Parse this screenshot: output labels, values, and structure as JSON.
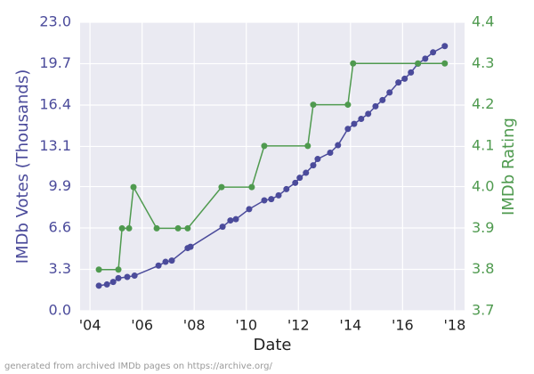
{
  "chart_data": {
    "type": "line",
    "xlabel": "Date",
    "ylabel": "IMDb Votes (Thousands)",
    "y2label": "IMDb Rating",
    "footnote": "generated from archived IMDb pages on https://archive.org/",
    "xlim": [
      2003.62,
      2018.38
    ],
    "xticks": [
      {
        "value": 2004,
        "label": "'04"
      },
      {
        "value": 2006,
        "label": "'06"
      },
      {
        "value": 2008,
        "label": "'08"
      },
      {
        "value": 2010,
        "label": "'10"
      },
      {
        "value": 2012,
        "label": "'12"
      },
      {
        "value": 2014,
        "label": "'14"
      },
      {
        "value": 2016,
        "label": "'16"
      },
      {
        "value": 2018,
        "label": "'18"
      }
    ],
    "ylim": [
      0,
      23
    ],
    "yticks": [
      {
        "value": 0,
        "label": "0.0"
      },
      3.3,
      6.6,
      9.9,
      13.1,
      16.4,
      19.7,
      {
        "value": 23,
        "label": "23.0"
      }
    ],
    "y2lim": [
      3.7,
      4.4
    ],
    "y2ticks": [
      3.7,
      3.8,
      3.9,
      {
        "value": 4,
        "label": "4.0"
      },
      4.1,
      4.2,
      4.3,
      4.4
    ],
    "grid": true,
    "series": [
      {
        "name": "IMDb Votes (Thousands)",
        "color": "#4b4b9b",
        "axis": "y",
        "x": [
          2004.34,
          2004.65,
          2004.89,
          2005.09,
          2005.43,
          2005.71,
          2006.63,
          2006.9,
          2007.14,
          2007.75,
          2007.86,
          2009.09,
          2009.39,
          2009.6,
          2010.11,
          2010.69,
          2010.96,
          2011.24,
          2011.54,
          2011.88,
          2012.05,
          2012.29,
          2012.57,
          2012.74,
          2013.22,
          2013.52,
          2013.9,
          2014.14,
          2014.41,
          2014.68,
          2014.96,
          2015.23,
          2015.5,
          2015.84,
          2016.08,
          2016.32,
          2016.59,
          2016.87,
          2017.17,
          2017.62
        ],
        "values": [
          2.0,
          2.1,
          2.3,
          2.6,
          2.7,
          2.8,
          3.6,
          3.9,
          4.0,
          5.0,
          5.1,
          6.7,
          7.2,
          7.3,
          8.1,
          8.8,
          8.9,
          9.2,
          9.7,
          10.2,
          10.6,
          11.0,
          11.6,
          12.1,
          12.6,
          13.2,
          14.5,
          14.9,
          15.3,
          15.7,
          16.3,
          16.8,
          17.4,
          18.2,
          18.5,
          19.0,
          19.7,
          20.1,
          20.6,
          21.1
        ]
      },
      {
        "name": "IMDb Rating",
        "color": "#4f9a4f",
        "axis": "y2",
        "x": [
          2004.34,
          2005.09,
          2005.23,
          2005.5,
          2005.67,
          2006.56,
          2007.38,
          2007.75,
          2009.05,
          2010.21,
          2010.69,
          2012.36,
          2012.57,
          2013.9,
          2014.1,
          2016.59,
          2017.62
        ],
        "values": [
          3.8,
          3.8,
          3.9,
          3.9,
          4.0,
          3.9,
          3.9,
          3.9,
          4.0,
          4.0,
          4.1,
          4.1,
          4.2,
          4.2,
          4.3,
          4.3,
          4.3
        ]
      }
    ]
  }
}
